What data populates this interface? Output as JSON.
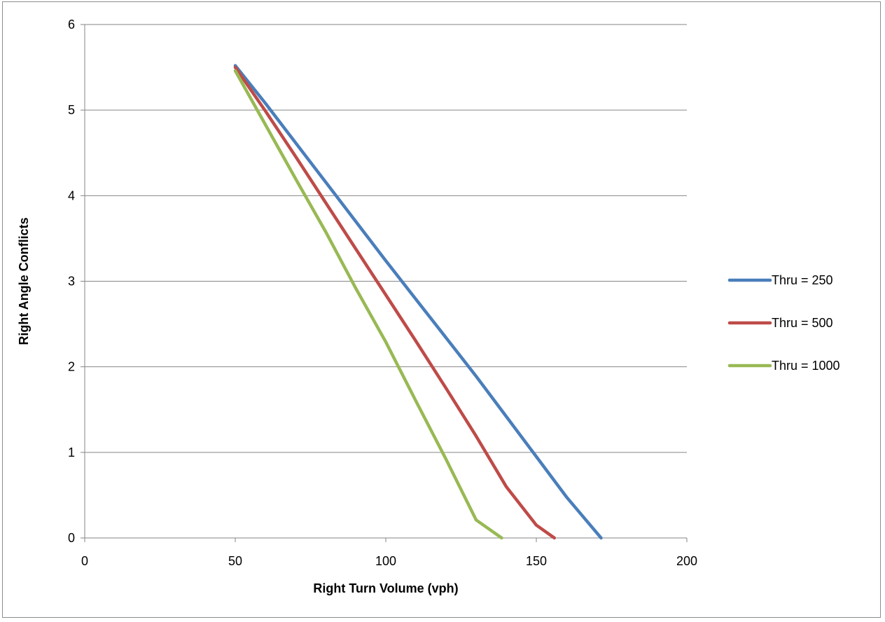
{
  "chart_data": {
    "type": "line",
    "title": "",
    "xlabel": "Right Turn Volume (vph)",
    "ylabel": "Right Angle Conflicts",
    "xlim": [
      0,
      200
    ],
    "ylim": [
      0,
      6
    ],
    "xticks": [
      0,
      50,
      100,
      150,
      200
    ],
    "yticks": [
      0,
      1,
      2,
      3,
      4,
      5,
      6
    ],
    "grid": "horizontal",
    "legend_position": "right",
    "series": [
      {
        "name": "Thru = 250",
        "color": "#4a7ebb",
        "x": [
          50,
          60,
          70,
          80,
          90,
          100,
          110,
          120,
          130,
          140,
          150,
          160,
          171.5
        ],
        "y": [
          5.52,
          5.08,
          4.62,
          4.16,
          3.7,
          3.24,
          2.79,
          2.34,
          1.89,
          1.42,
          0.95,
          0.48,
          0
        ]
      },
      {
        "name": "Thru = 500",
        "color": "#be4b48",
        "x": [
          50,
          60,
          70,
          80,
          90,
          100,
          110,
          120,
          130,
          140,
          150,
          156
        ],
        "y": [
          5.5,
          4.99,
          4.46,
          3.92,
          3.38,
          2.84,
          2.3,
          1.75,
          1.19,
          0.6,
          0.15,
          0
        ]
      },
      {
        "name": "Thru = 1000",
        "color": "#98b954",
        "x": [
          50,
          60,
          70,
          80,
          90,
          100,
          110,
          120,
          130,
          138.5
        ],
        "y": [
          5.46,
          4.83,
          4.2,
          3.58,
          2.92,
          2.29,
          1.6,
          0.92,
          0.21,
          0
        ]
      }
    ]
  }
}
